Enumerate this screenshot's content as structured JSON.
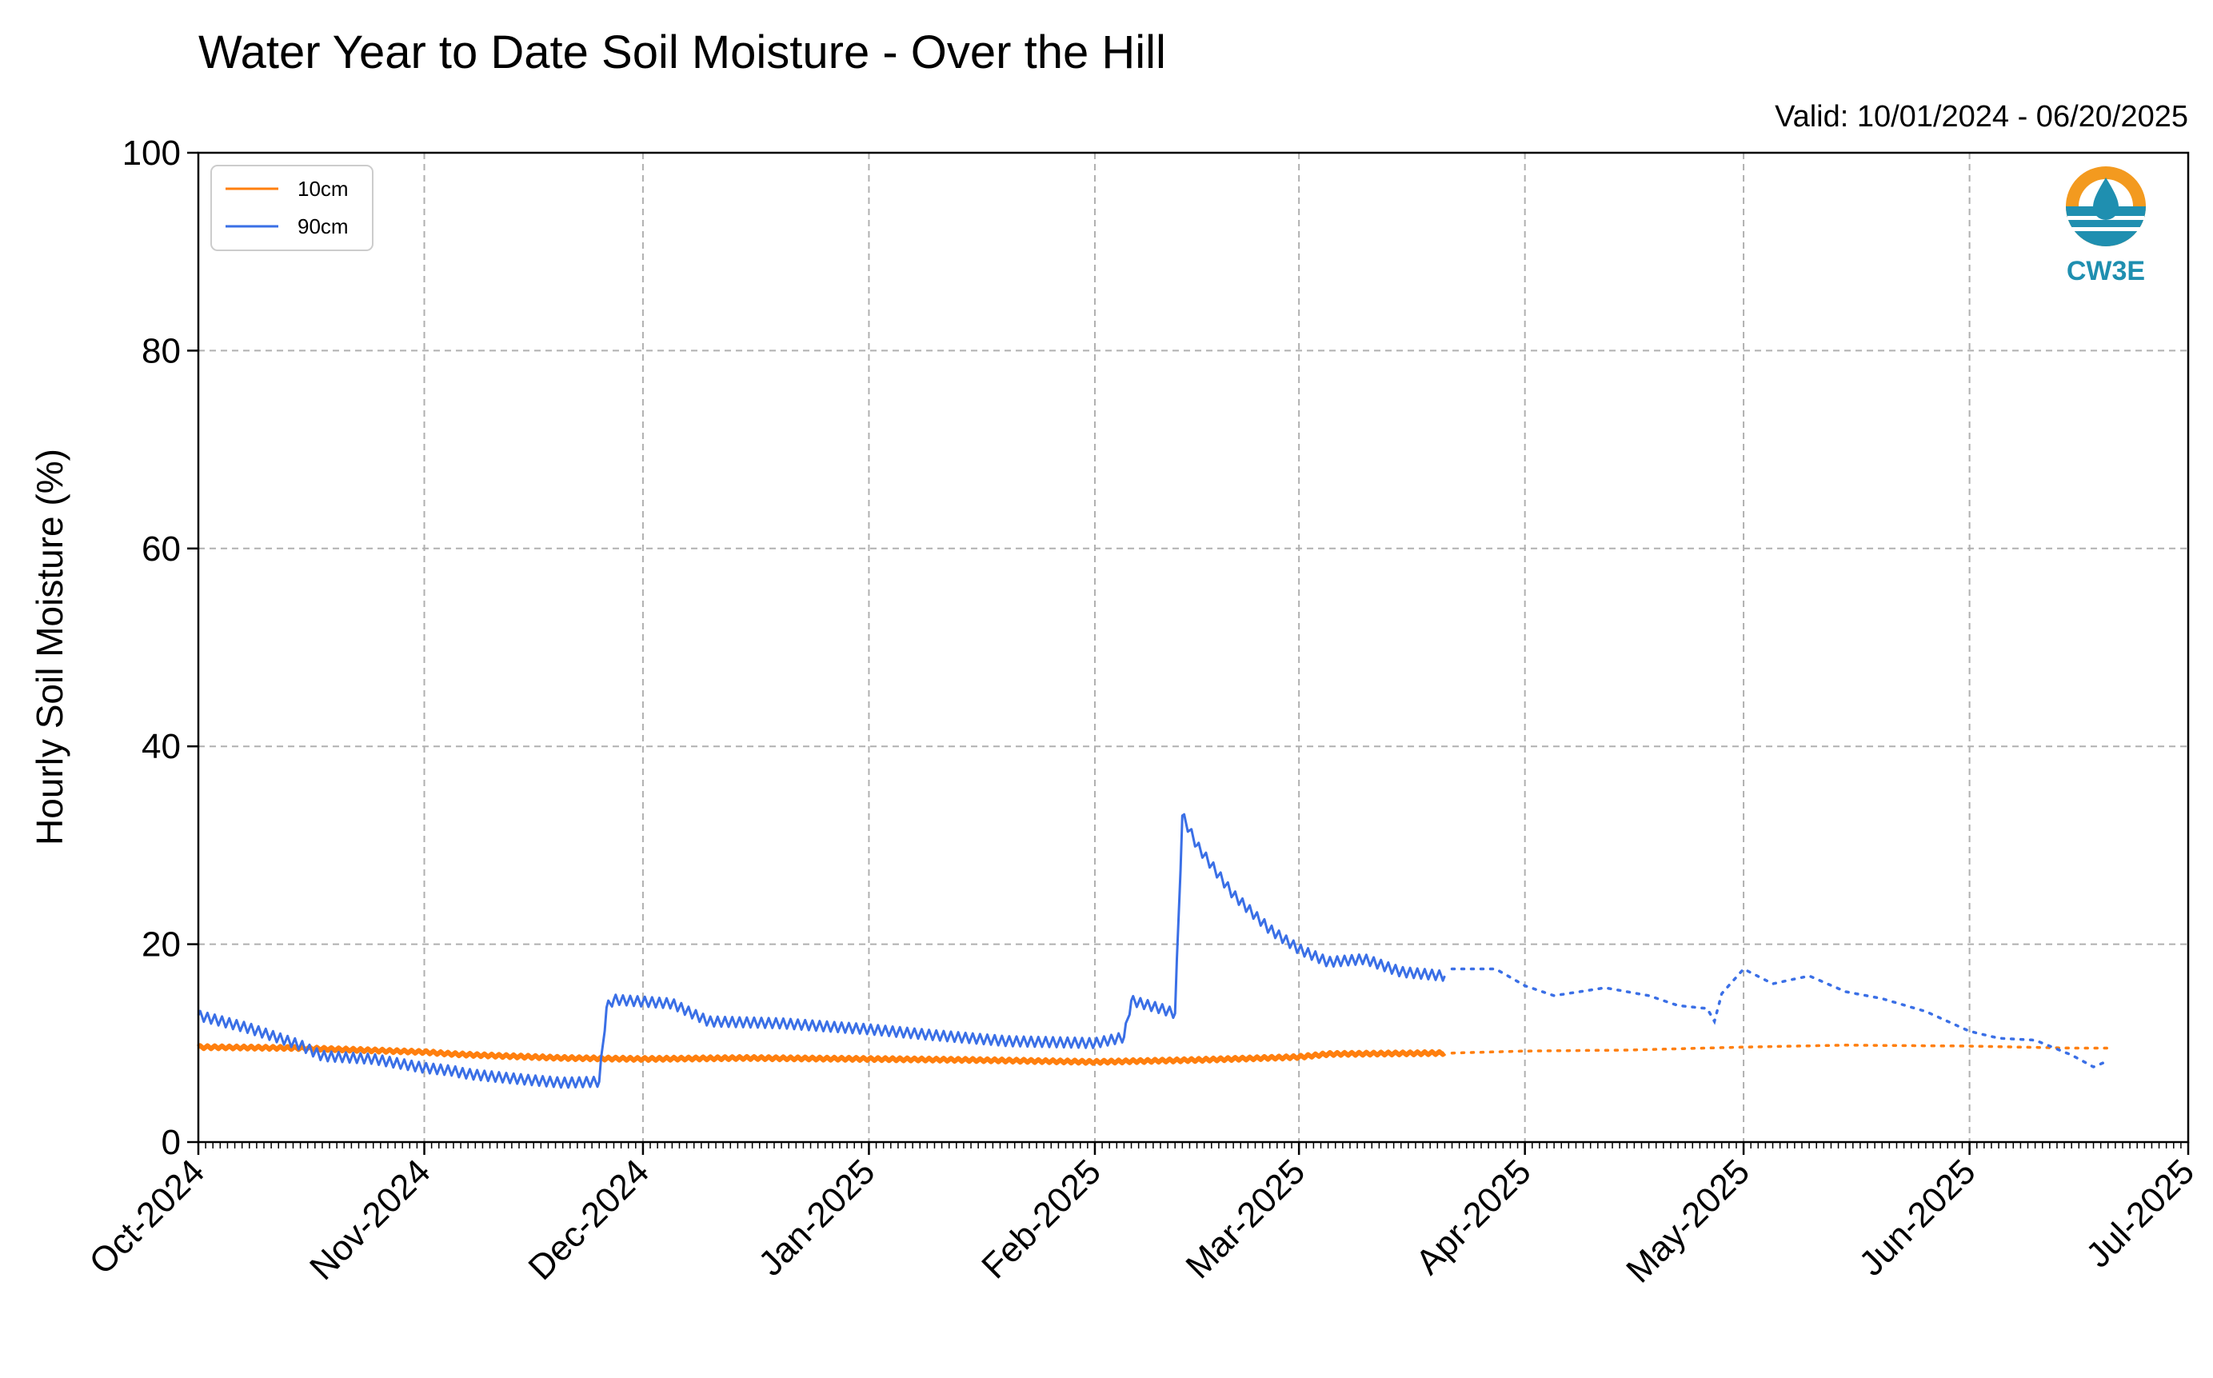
{
  "chart_data": {
    "type": "line",
    "title": "Water Year to Date Soil Moisture - Over the Hill",
    "subtitle": "Valid: 10/01/2024 - 06/20/2025",
    "xlabel": "",
    "ylabel": "Hourly Soil Moisture (%)",
    "ylim": [
      0,
      100
    ],
    "yticks": [
      0,
      20,
      40,
      60,
      80,
      100
    ],
    "xlim": [
      "2024-10-01",
      "2025-07-01"
    ],
    "xticks": [
      "2024-10-01",
      "2024-11-01",
      "2024-12-01",
      "2025-01-01",
      "2025-02-01",
      "2025-03-01",
      "2025-04-01",
      "2025-05-01",
      "2025-06-01",
      "2025-07-01"
    ],
    "xtick_labels": [
      "Oct-2024",
      "Nov-2024",
      "Dec-2024",
      "Jan-2025",
      "Feb-2025",
      "Mar-2025",
      "Apr-2025",
      "May-2025",
      "Jun-2025",
      "Jul-2025"
    ],
    "grid": true,
    "legend_position": "top-left",
    "logo_text": "CW3E",
    "series": [
      {
        "name": "10cm",
        "color": "#ff7f0e",
        "points": [
          [
            "2024-10-01",
            9.6
          ],
          [
            "2024-10-15",
            9.5
          ],
          [
            "2024-11-01",
            9.1
          ],
          [
            "2024-11-05",
            8.9
          ],
          [
            "2024-11-08",
            8.8
          ],
          [
            "2024-11-20",
            8.5
          ],
          [
            "2024-12-01",
            8.4
          ],
          [
            "2024-12-15",
            8.5
          ],
          [
            "2025-01-01",
            8.4
          ],
          [
            "2025-01-15",
            8.3
          ],
          [
            "2025-02-01",
            8.1
          ],
          [
            "2025-02-15",
            8.3
          ],
          [
            "2025-03-01",
            8.6
          ],
          [
            "2025-03-05",
            8.9
          ],
          [
            "2025-03-21",
            9.0
          ]
        ],
        "dotted_points": [
          [
            "2025-03-22",
            9.0
          ],
          [
            "2025-04-01",
            9.2
          ],
          [
            "2025-04-15",
            9.3
          ],
          [
            "2025-05-01",
            9.6
          ],
          [
            "2025-05-15",
            9.8
          ],
          [
            "2025-06-01",
            9.7
          ],
          [
            "2025-06-15",
            9.5
          ],
          [
            "2025-06-20",
            9.5
          ]
        ]
      },
      {
        "name": "90cm",
        "color": "#3a6fe6",
        "points": [
          [
            "2024-10-01",
            12.8
          ],
          [
            "2024-10-08",
            11.5
          ],
          [
            "2024-10-15",
            9.8
          ],
          [
            "2024-10-18",
            8.7
          ],
          [
            "2024-10-25",
            8.4
          ],
          [
            "2024-11-01",
            7.5
          ],
          [
            "2024-11-05",
            7.2
          ],
          [
            "2024-11-06",
            7.0
          ],
          [
            "2024-11-08",
            6.8
          ],
          [
            "2024-11-15",
            6.3
          ],
          [
            "2024-11-20",
            6.0
          ],
          [
            "2024-11-25",
            6.1
          ],
          [
            "2024-11-26",
            13.6
          ],
          [
            "2024-11-27",
            14.4
          ],
          [
            "2024-12-05",
            14.0
          ],
          [
            "2024-12-10",
            12.2
          ],
          [
            "2024-12-20",
            12.0
          ],
          [
            "2025-01-01",
            11.4
          ],
          [
            "2025-01-10",
            10.8
          ],
          [
            "2025-01-20",
            10.2
          ],
          [
            "2025-02-01",
            10.0
          ],
          [
            "2025-02-05",
            10.6
          ],
          [
            "2025-02-06",
            14.3
          ],
          [
            "2025-02-10",
            13.5
          ],
          [
            "2025-02-12",
            13.0
          ],
          [
            "2025-02-13",
            33.0
          ],
          [
            "2025-02-15",
            30.0
          ],
          [
            "2025-02-20",
            25.0
          ],
          [
            "2025-02-25",
            21.5
          ],
          [
            "2025-03-01",
            19.5
          ],
          [
            "2025-03-05",
            18.2
          ],
          [
            "2025-03-10",
            18.5
          ],
          [
            "2025-03-15",
            17.2
          ],
          [
            "2025-03-21",
            16.8
          ]
        ],
        "dotted_points": [
          [
            "2025-03-22",
            17.5
          ],
          [
            "2025-03-28",
            17.5
          ],
          [
            "2025-04-01",
            15.8
          ],
          [
            "2025-04-05",
            14.8
          ],
          [
            "2025-04-12",
            15.6
          ],
          [
            "2025-04-18",
            14.8
          ],
          [
            "2025-04-22",
            13.8
          ],
          [
            "2025-04-26",
            13.5
          ],
          [
            "2025-04-27",
            12.2
          ],
          [
            "2025-04-28",
            15.0
          ],
          [
            "2025-05-01",
            17.5
          ],
          [
            "2025-05-05",
            16.0
          ],
          [
            "2025-05-10",
            16.8
          ],
          [
            "2025-05-15",
            15.2
          ],
          [
            "2025-05-20",
            14.5
          ],
          [
            "2025-05-26",
            13.2
          ],
          [
            "2025-06-01",
            11.2
          ],
          [
            "2025-06-05",
            10.5
          ],
          [
            "2025-06-10",
            10.3
          ],
          [
            "2025-06-15",
            8.8
          ],
          [
            "2025-06-18",
            7.6
          ],
          [
            "2025-06-20",
            8.2
          ]
        ]
      }
    ]
  }
}
